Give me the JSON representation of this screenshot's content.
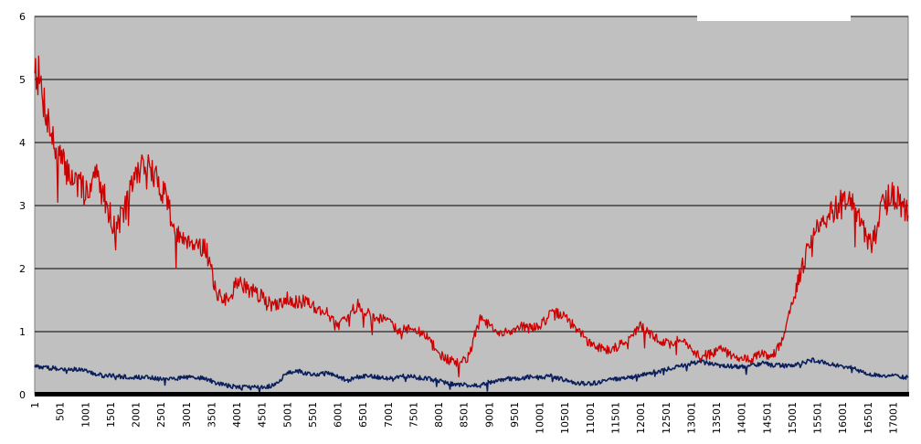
{
  "chart_data": {
    "type": "line",
    "title": "",
    "xlabel": "",
    "ylabel": "",
    "xlim": [
      1,
      17301
    ],
    "ylim": [
      0,
      6
    ],
    "y_ticks": [
      "0",
      "1",
      "2",
      "3",
      "4",
      "5",
      "6"
    ],
    "x_tick_values": [
      1,
      501,
      1001,
      1501,
      2001,
      2501,
      3001,
      3501,
      4001,
      4501,
      5001,
      5501,
      6001,
      6501,
      7001,
      7501,
      8001,
      8501,
      9001,
      9501,
      10001,
      10501,
      11001,
      11501,
      12001,
      12501,
      13001,
      13501,
      14001,
      14501,
      15001,
      15501,
      16001,
      16501,
      17001
    ],
    "x_tick_labels": [
      "1",
      "501",
      "1001",
      "1501",
      "2001",
      "2501",
      "3001",
      "3501",
      "4001",
      "4501",
      "5001",
      "5501",
      "6001",
      "6501",
      "7001",
      "7501",
      "8001",
      "8501",
      "9001",
      "9501",
      "10001",
      "10501",
      "11001",
      "11501",
      "12001",
      "12501",
      "13001",
      "13501",
      "14001",
      "14501",
      "15001",
      "15501",
      "16001",
      "16501",
      "17001"
    ],
    "grid": true,
    "legend": "top-right",
    "series": [
      {
        "color": "#cc0000",
        "x": [
          1,
          200,
          400,
          600,
          800,
          1000,
          1200,
          1400,
          1600,
          1800,
          2000,
          2200,
          2400,
          2600,
          2800,
          3000,
          3200,
          3400,
          3600,
          3800,
          4000,
          4200,
          4400,
          4600,
          4800,
          5000,
          5200,
          5400,
          5600,
          5800,
          6000,
          6200,
          6400,
          6600,
          6800,
          7000,
          7200,
          7400,
          7600,
          7800,
          8000,
          8200,
          8400,
          8600,
          8800,
          9000,
          9200,
          9400,
          9600,
          9800,
          10000,
          10200,
          10400,
          10600,
          10800,
          11000,
          11200,
          11400,
          11600,
          11800,
          12000,
          12200,
          12400,
          12600,
          12800,
          13000,
          13200,
          13400,
          13600,
          13800,
          14000,
          14200,
          14400,
          14600,
          14800,
          15000,
          15200,
          15400,
          15600,
          15800,
          16000,
          16200,
          16400,
          16600,
          16800,
          17000,
          17200,
          17300
        ],
        "values": [
          5.3,
          4.6,
          3.9,
          3.6,
          3.4,
          3.2,
          3.5,
          3.1,
          2.6,
          3.0,
          3.5,
          3.7,
          3.4,
          3.2,
          2.5,
          2.5,
          2.4,
          2.3,
          1.6,
          1.5,
          1.8,
          1.7,
          1.6,
          1.5,
          1.4,
          1.55,
          1.45,
          1.5,
          1.35,
          1.3,
          1.1,
          1.2,
          1.45,
          1.3,
          1.2,
          1.25,
          1.0,
          1.05,
          1.0,
          0.9,
          0.65,
          0.55,
          0.5,
          0.6,
          1.2,
          1.1,
          0.95,
          1.0,
          1.1,
          1.05,
          1.1,
          1.25,
          1.3,
          1.15,
          1.0,
          0.8,
          0.75,
          0.7,
          0.8,
          0.9,
          1.1,
          0.95,
          0.85,
          0.8,
          0.9,
          0.7,
          0.6,
          0.65,
          0.75,
          0.6,
          0.6,
          0.55,
          0.65,
          0.6,
          0.85,
          1.5,
          2.0,
          2.55,
          2.7,
          2.9,
          3.1,
          3.0,
          2.6,
          2.4,
          3.0,
          3.2,
          3.0,
          2.9
        ]
      },
      {
        "color": "#0a1f5c",
        "x": [
          1,
          200,
          400,
          600,
          800,
          1000,
          1200,
          1400,
          1600,
          1800,
          2000,
          2200,
          2400,
          2600,
          2800,
          3000,
          3200,
          3400,
          3600,
          3800,
          4000,
          4200,
          4400,
          4600,
          4800,
          5000,
          5200,
          5400,
          5600,
          5800,
          6000,
          6200,
          6400,
          6600,
          6800,
          7000,
          7200,
          7400,
          7600,
          7800,
          8000,
          8200,
          8400,
          8600,
          8800,
          9000,
          9200,
          9400,
          9600,
          9800,
          10000,
          10200,
          10400,
          10600,
          10800,
          11000,
          11200,
          11400,
          11600,
          11800,
          12000,
          12200,
          12400,
          12600,
          12800,
          13000,
          13200,
          13400,
          13600,
          13800,
          14000,
          14200,
          14400,
          14600,
          14800,
          15000,
          15200,
          15400,
          15600,
          15800,
          16000,
          16200,
          16400,
          16600,
          16800,
          17000,
          17200,
          17300
        ],
        "values": [
          0.45,
          0.43,
          0.42,
          0.41,
          0.4,
          0.38,
          0.32,
          0.3,
          0.3,
          0.28,
          0.28,
          0.27,
          0.26,
          0.25,
          0.26,
          0.28,
          0.27,
          0.25,
          0.18,
          0.15,
          0.12,
          0.12,
          0.13,
          0.12,
          0.18,
          0.35,
          0.38,
          0.33,
          0.32,
          0.35,
          0.3,
          0.22,
          0.28,
          0.3,
          0.28,
          0.26,
          0.28,
          0.3,
          0.27,
          0.25,
          0.22,
          0.18,
          0.16,
          0.15,
          0.14,
          0.2,
          0.22,
          0.25,
          0.26,
          0.28,
          0.27,
          0.3,
          0.26,
          0.2,
          0.18,
          0.17,
          0.2,
          0.24,
          0.25,
          0.27,
          0.3,
          0.35,
          0.38,
          0.42,
          0.45,
          0.5,
          0.52,
          0.48,
          0.46,
          0.45,
          0.44,
          0.45,
          0.5,
          0.47,
          0.46,
          0.45,
          0.5,
          0.55,
          0.52,
          0.48,
          0.45,
          0.42,
          0.35,
          0.32,
          0.3,
          0.3,
          0.28,
          0.27
        ]
      }
    ]
  }
}
